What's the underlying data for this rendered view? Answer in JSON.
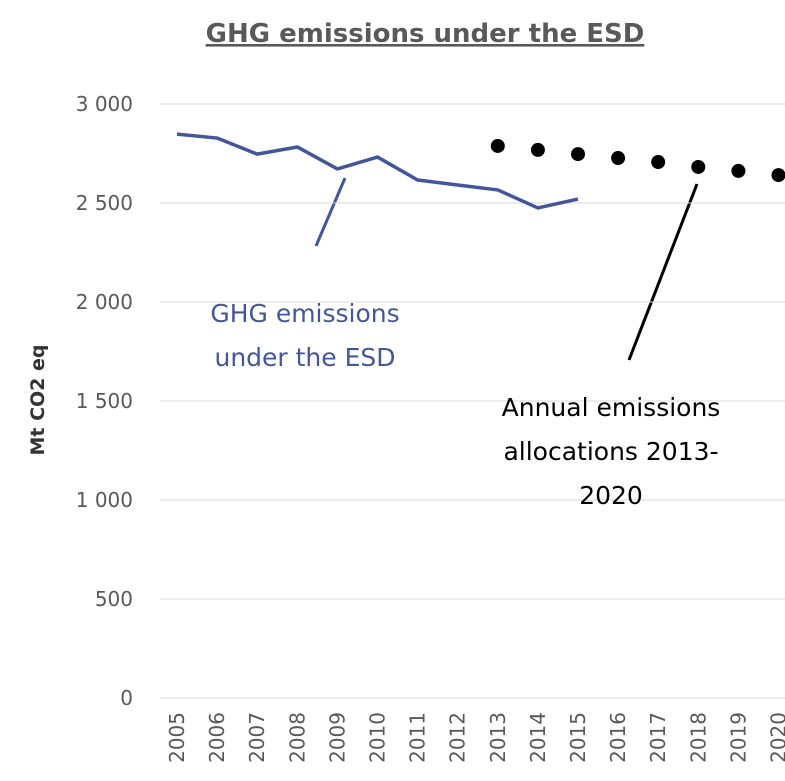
{
  "chart_data": {
    "type": "line",
    "title": "GHG emissions under the ESD",
    "y_label": "Mt CO2 eq",
    "categories": [
      "2005",
      "2006",
      "2007",
      "2008",
      "2009",
      "2010",
      "2011",
      "2012",
      "2013",
      "2014",
      "2015",
      "2016",
      "2017",
      "2018",
      "2019",
      "2020"
    ],
    "series": [
      {
        "name": "GHG emissions under the ESD",
        "color": "#44569a",
        "style": "line",
        "values": [
          2848,
          2828,
          2747,
          2783,
          2672,
          2732,
          2616,
          2591,
          2566,
          2475,
          2520,
          null,
          null,
          null,
          null,
          null
        ]
      },
      {
        "name": "Annual emissions allocations 2013-2020",
        "color": "#000000",
        "style": "dots",
        "values": [
          null,
          null,
          null,
          null,
          null,
          null,
          null,
          null,
          2788,
          2768,
          2747,
          2727,
          2707,
          2682,
          2662,
          2641
        ]
      }
    ],
    "annotations": [
      {
        "lines": [
          "GHG emissions",
          "under the ESD"
        ],
        "color": "#44569a"
      },
      {
        "lines": [
          "Annual emissions",
          "allocations 2013-",
          "2020"
        ],
        "color": "#000000"
      }
    ],
    "ylim": [
      0,
      3000
    ],
    "yticks": [
      0,
      500,
      {
        "value": 1000,
        "label": "1 000"
      },
      {
        "value": 1500,
        "label": "1 500"
      },
      {
        "value": 2000,
        "label": "2 000"
      },
      {
        "value": 2500,
        "label": "2 500"
      },
      {
        "value": 3000,
        "label": "3 000"
      }
    ],
    "grid": true
  }
}
